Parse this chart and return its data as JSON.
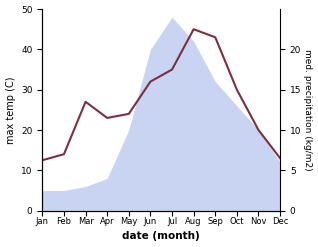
{
  "months": [
    "Jan",
    "Feb",
    "Mar",
    "Apr",
    "May",
    "Jun",
    "Jul",
    "Aug",
    "Sep",
    "Oct",
    "Nov",
    "Dec"
  ],
  "x_positions": [
    0,
    1,
    2,
    3,
    4,
    5,
    6,
    7,
    8,
    9,
    10,
    11
  ],
  "temperature": [
    12.5,
    14,
    27,
    23,
    24,
    32,
    35,
    45,
    43,
    30,
    20,
    13
  ],
  "precipitation_scaled": [
    5,
    5,
    6,
    8,
    20,
    40,
    48,
    42,
    32,
    26,
    20,
    12
  ],
  "precip_right_ticks": [
    0,
    5,
    10,
    15,
    20
  ],
  "temp_ylim": [
    0,
    50
  ],
  "precip_ylim": [
    0,
    25
  ],
  "temp_color": "#7a3040",
  "precip_fill_color": "#b8c5ee",
  "precip_fill_alpha": 0.75,
  "xlabel": "date (month)",
  "ylabel_left": "max temp (C)",
  "ylabel_right": "med. precipitation (kg/m2)",
  "temp_linewidth": 1.5,
  "left_yticks": [
    0,
    10,
    20,
    30,
    40,
    50
  ],
  "background_color": "#ffffff"
}
